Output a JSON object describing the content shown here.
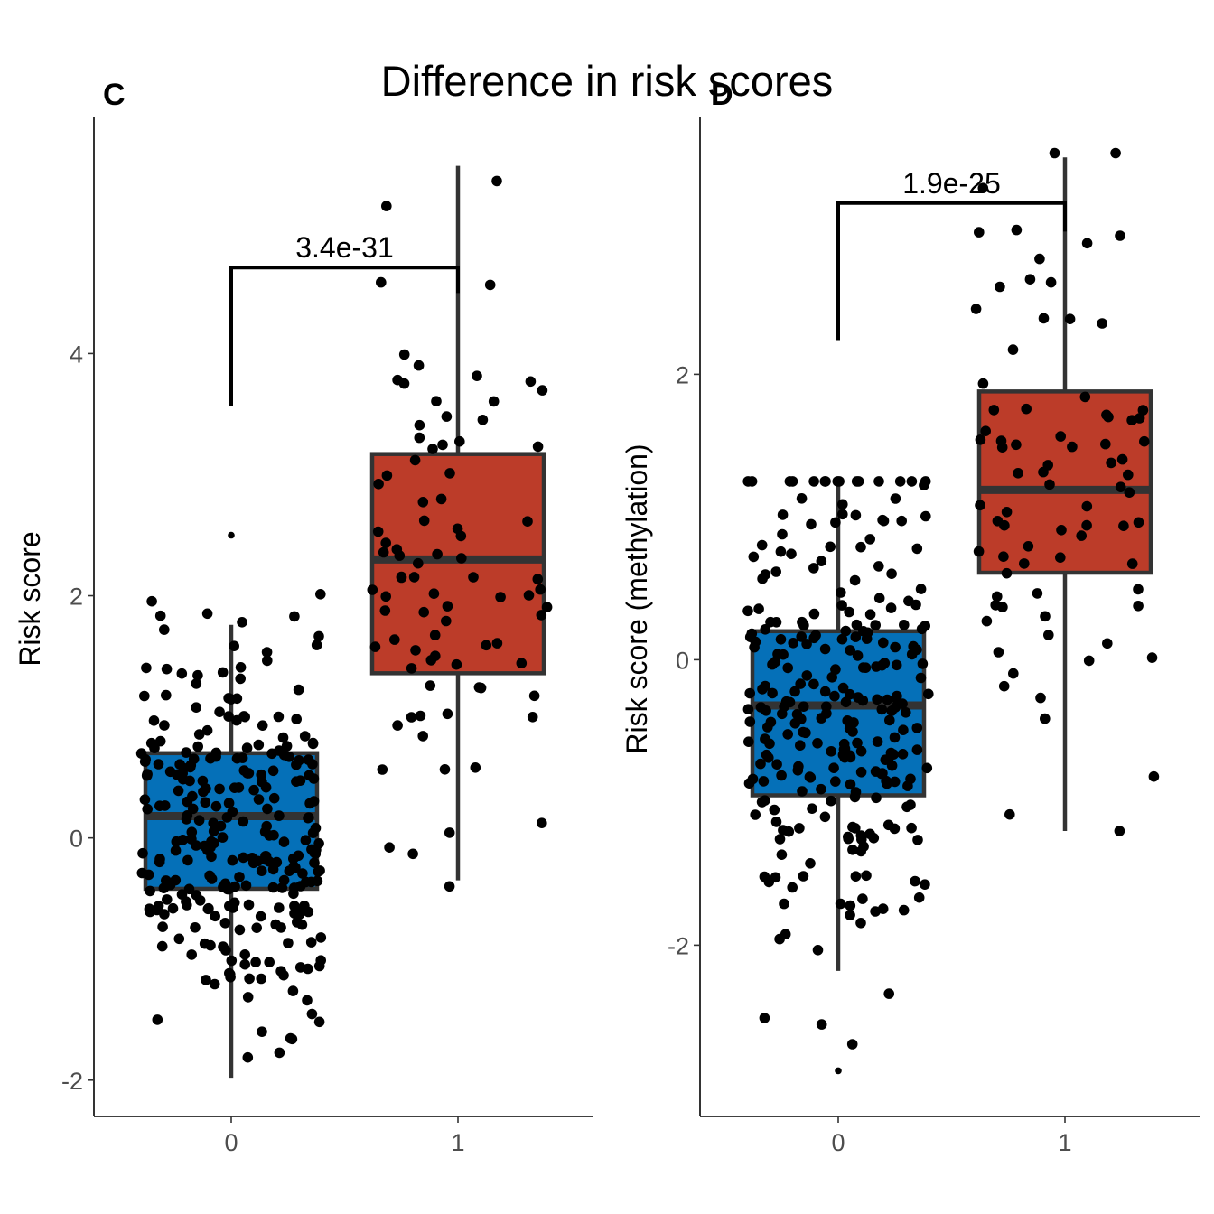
{
  "title": "Difference in risk scores",
  "chart_data": [
    {
      "type": "boxplot",
      "panel_tag": "C",
      "categories": [
        "0",
        "1"
      ],
      "xlabel": "",
      "ylabel": "Risk score",
      "ylim": [
        -2.3,
        5.95
      ],
      "yticks": [
        -2,
        0,
        2,
        4
      ],
      "colors": [
        "#0570B8",
        "#BC3C29"
      ],
      "boxes": [
        {
          "category": "0",
          "q1": -0.42,
          "median": 0.18,
          "q3": 0.7,
          "whisker_low": -1.98,
          "whisker_high": 1.76,
          "outliers": [
            2.5
          ]
        },
        {
          "category": "1",
          "q1": 1.36,
          "median": 2.3,
          "q3": 3.17,
          "whisker_low": -0.35,
          "whisker_high": 5.55,
          "outliers": []
        }
      ],
      "comparison": {
        "label": "3.4e-31",
        "y_bracket": 4.71,
        "left_foot": 3.57,
        "right_foot": 4.5
      },
      "seed": 11,
      "points": [
        {
          "category": "0",
          "n": 280,
          "mean": 0.15,
          "sd": 0.78,
          "range": [
            -2.0,
            2.5
          ]
        },
        {
          "category": "1",
          "n": 85,
          "mean": 2.3,
          "sd": 1.25,
          "range": [
            -0.4,
            5.55
          ]
        }
      ]
    },
    {
      "type": "boxplot",
      "panel_tag": "D",
      "categories": [
        "0",
        "1"
      ],
      "xlabel": "",
      "ylabel": "Risk score (methylation)",
      "ylim": [
        -3.2,
        3.8
      ],
      "yticks": [
        -2,
        0,
        2
      ],
      "colors": [
        "#0570B8",
        "#BC3C29"
      ],
      "boxes": [
        {
          "category": "0",
          "q1": -0.95,
          "median": -0.32,
          "q3": 0.2,
          "whisker_low": -2.18,
          "whisker_high": 1.22,
          "outliers": [
            -2.88
          ]
        },
        {
          "category": "1",
          "q1": 0.61,
          "median": 1.19,
          "q3": 1.88,
          "whisker_low": -1.2,
          "whisker_high": 3.52,
          "outliers": []
        }
      ],
      "comparison": {
        "label": "1.9e-25",
        "y_bracket": 3.2,
        "left_foot": 2.24,
        "right_foot": 3.0
      },
      "seed": 29,
      "points": [
        {
          "category": "0",
          "n": 270,
          "mean": -0.35,
          "sd": 0.85,
          "range": [
            -2.9,
            1.25
          ]
        },
        {
          "category": "1",
          "n": 80,
          "mean": 1.2,
          "sd": 1.0,
          "range": [
            -1.2,
            3.55
          ]
        }
      ]
    }
  ]
}
